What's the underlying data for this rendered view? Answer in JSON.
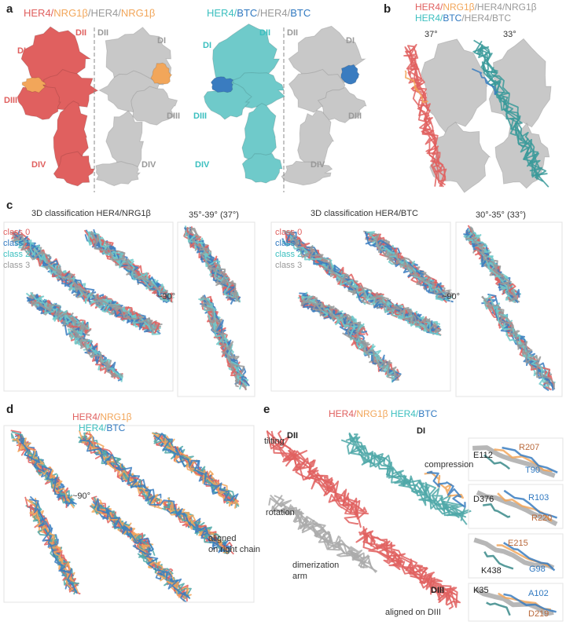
{
  "a": {
    "label": "a",
    "title1": [
      "HER4/",
      "NRG1β",
      "/HER4/",
      "NRG1β"
    ],
    "left1": [
      "DI",
      "DII",
      "DIII",
      "DIV"
    ],
    "right1": [
      "DII",
      "DI",
      "DIII",
      "DIV"
    ],
    "title2": [
      "HER4/",
      "BTC",
      "/HER4/",
      "BTC"
    ],
    "left2": [
      "DI",
      "DII",
      "DIII",
      "DIV"
    ],
    "right2": [
      "DII",
      "DI",
      "DIII",
      "DIV"
    ]
  },
  "b": {
    "label": "b",
    "title1": [
      "HER4/",
      "NRG1β",
      "/HER4/NRG1β"
    ],
    "title2": [
      "HER4/",
      "BTC",
      "/HER4/BTC"
    ],
    "angle1": "37°",
    "angle2": "33°"
  },
  "c": {
    "label": "c",
    "left": {
      "title": "3D classification HER4/NRG1β",
      "classes": [
        "class 0",
        "class 1",
        "class 2",
        "class 3"
      ],
      "angle": "35°-39° (37°)",
      "rotation": "~90°"
    },
    "right": {
      "title": "3D classification HER4/BTC",
      "classes": [
        "class 0",
        "class 1",
        "class 2",
        "class 3"
      ],
      "angle": "30°-35° (33°)",
      "rotation": "~90°"
    }
  },
  "d": {
    "label": "d",
    "title1": [
      "HER4/",
      "NRG1β"
    ],
    "title2": [
      "HER4/",
      "BTC"
    ],
    "rotation": "~90°",
    "note": [
      "aligned",
      "on right chain"
    ]
  },
  "e": {
    "label": "e",
    "title": [
      "HER4/",
      "NRG1β ",
      "HER4/",
      "BTC"
    ],
    "domains": [
      "DII",
      "DI",
      "DIII"
    ],
    "motions": [
      "tilting",
      "compression",
      "rotation",
      [
        "dimerization",
        "arm"
      ]
    ],
    "note": "aligned on DIII",
    "insets": [
      [
        "E112",
        "R207",
        "T90"
      ],
      [
        "D376",
        "R103",
        "R220"
      ],
      [
        "E215",
        "G98",
        "K438"
      ],
      [
        "K35",
        "A102",
        "D219"
      ]
    ]
  }
}
